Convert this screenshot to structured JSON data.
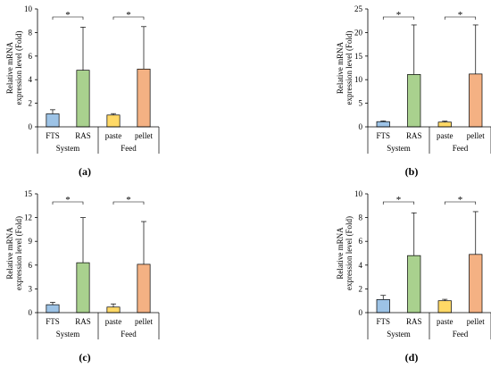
{
  "colors": {
    "FTS": "#9DC3E6",
    "RAS": "#A9D18E",
    "paste": "#FFD966",
    "pellet": "#F4B183",
    "stroke": "#000000"
  },
  "chart_data": [
    {
      "type": "bar",
      "panel": "(a)",
      "ylabel_line1": "Relative mRNA",
      "ylabel_line2": "expression level (Fold)",
      "ylim": [
        0,
        10
      ],
      "yticks": [
        0,
        2,
        4,
        6,
        8,
        10
      ],
      "categories": [
        "FTS",
        "RAS",
        "paste",
        "pellet"
      ],
      "groups": [
        {
          "label": "System",
          "categories": [
            "FTS",
            "RAS"
          ]
        },
        {
          "label": "Feed",
          "categories": [
            "paste",
            "pellet"
          ]
        }
      ],
      "values": [
        1.1,
        4.8,
        1.0,
        4.9
      ],
      "errors": [
        0.35,
        3.65,
        0.12,
        3.6
      ],
      "significance": [
        "*",
        "*"
      ]
    },
    {
      "type": "bar",
      "panel": "(b)",
      "ylabel_line1": "Relative mRNA",
      "ylabel_line2": "expression level (Fold)",
      "ylim": [
        0,
        25
      ],
      "yticks": [
        0,
        5,
        10,
        15,
        20,
        25
      ],
      "categories": [
        "FTS",
        "RAS",
        "paste",
        "pellet"
      ],
      "groups": [
        {
          "label": "System",
          "categories": [
            "FTS",
            "RAS"
          ]
        },
        {
          "label": "Feed",
          "categories": [
            "paste",
            "pellet"
          ]
        }
      ],
      "values": [
        1.1,
        11.1,
        1.0,
        11.2
      ],
      "errors": [
        0.15,
        10.5,
        0.2,
        10.4
      ],
      "significance": [
        "*",
        "*"
      ]
    },
    {
      "type": "bar",
      "panel": "(c)",
      "ylabel_line1": "Relative mRNA",
      "ylabel_line2": "expression level (Fold)",
      "ylim": [
        0,
        15
      ],
      "yticks": [
        0,
        3,
        6,
        9,
        12,
        15
      ],
      "categories": [
        "FTS",
        "RAS",
        "paste",
        "pellet"
      ],
      "groups": [
        {
          "label": "System",
          "categories": [
            "FTS",
            "RAS"
          ]
        },
        {
          "label": "Feed",
          "categories": [
            "paste",
            "pellet"
          ]
        }
      ],
      "values": [
        1.0,
        6.3,
        0.7,
        6.1
      ],
      "errors": [
        0.3,
        5.7,
        0.4,
        5.4
      ],
      "significance": [
        "*",
        "*"
      ]
    },
    {
      "type": "bar",
      "panel": "(d)",
      "ylabel_line1": "Relative mRNA",
      "ylabel_line2": "expression level (Fold)",
      "ylim": [
        0,
        10
      ],
      "yticks": [
        0,
        2,
        4,
        6,
        8,
        10
      ],
      "categories": [
        "FTS",
        "RAS",
        "paste",
        "pellet"
      ],
      "groups": [
        {
          "label": "System",
          "categories": [
            "FTS",
            "RAS"
          ]
        },
        {
          "label": "Feed",
          "categories": [
            "paste",
            "pellet"
          ]
        }
      ],
      "values": [
        1.1,
        4.8,
        1.0,
        4.9
      ],
      "errors": [
        0.35,
        3.6,
        0.12,
        3.6
      ],
      "significance": [
        "*",
        "*"
      ]
    }
  ]
}
